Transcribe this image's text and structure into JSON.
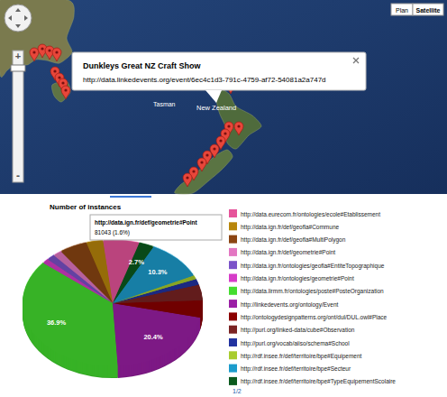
{
  "map": {
    "info_window": {
      "title": "Dunkleys Great NZ Craft Show",
      "url": "http://data.linkedevents.org/event/6ec4c1d3-791c-4759-af72-54081a2a747d"
    },
    "labels": [
      "Tasman",
      "New Zealand"
    ],
    "map_types": [
      "Plan",
      "Satellite"
    ],
    "zoom": [
      "+",
      "-"
    ]
  },
  "chart_data": {
    "type": "pie",
    "title": "Number of instances",
    "categories": [
      "http://data.eurecom.fr/ontologies/ecole#Etablissement",
      "http://data.ign.fr/def/geofla#Commune",
      "http://data.ign.fr/def/geofla#MultiPolygon",
      "http://data.ign.fr/def/geometrie#Point",
      "http://data.ign.fr/ontologies/geofla#EntiteTopographique",
      "http://data.ign.fr/ontologies/geometrie#Point",
      "http://data.lirmm.fr/ontologies/poste#PosteOrganization",
      "http://linkedevents.org/ontology/Event",
      "http://ontologydesignpatterns.org/ont/dul/DUL.owl#Place",
      "http://purl.org/linked-data/cube#Observation",
      "http://purl.org/vocab/aiiso/schema#School",
      "http://rdf.insee.fr/def/territoire/bpe#Equipement",
      "http://rdf.insee.fr/def/territoire/bpe#Secteur",
      "http://rdf.insee.fr/def/territoire/bpe#TypeEquipementScolaire"
    ],
    "values": [
      6.5,
      3.0,
      5.0,
      1.6,
      1.5,
      1.2,
      36.9,
      20.4,
      4.4,
      4.0,
      1.5,
      1.0,
      10.3,
      2.7
    ],
    "colors": [
      "#e6549b",
      "#b8860b",
      "#8b4513",
      "#e377c2",
      "#7b52c9",
      "#d63cc8",
      "#44dd2f",
      "#9b1fa5",
      "#8b0000",
      "#7a2323",
      "#2233a0",
      "#a8cc2e",
      "#1c9ccc",
      "#0b5a1e"
    ],
    "data_labels": true,
    "value_labels": [
      null,
      null,
      null,
      null,
      null,
      null,
      "36.9%",
      "20.4%",
      null,
      null,
      null,
      null,
      "10.3%",
      "2.7%"
    ],
    "legend": "right",
    "annotations": [
      {
        "text": "http://data.ign.fr/def/geometrie#Point"
      },
      {
        "text": "81043 (1.6%)"
      }
    ]
  },
  "legend_pager": "1/2"
}
